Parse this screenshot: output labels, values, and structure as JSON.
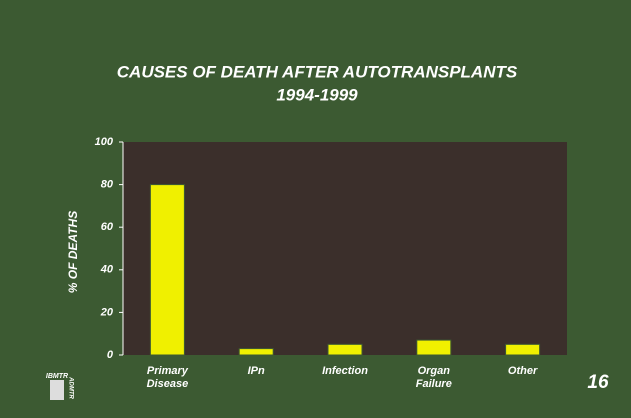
{
  "chart_data": {
    "type": "bar",
    "title": "CAUSES OF DEATH AFTER AUTOTRANSPLANTS",
    "subtitle": "1994-1999",
    "y_label": "% OF DEATHS",
    "categories": [
      [
        "Primary",
        "Disease"
      ],
      [
        "IPn"
      ],
      [
        "Infection"
      ],
      [
        "Organ",
        "Failure"
      ],
      [
        "Other"
      ]
    ],
    "values": [
      80,
      3,
      5,
      7,
      5
    ],
    "color": "#f0f000",
    "ylim": [
      0,
      100
    ],
    "yticks": [
      0,
      20,
      40,
      60,
      80,
      100
    ],
    "grid": false,
    "page_number": "16",
    "logo": {
      "top": "IBMTR",
      "side": "ADMTR"
    }
  }
}
